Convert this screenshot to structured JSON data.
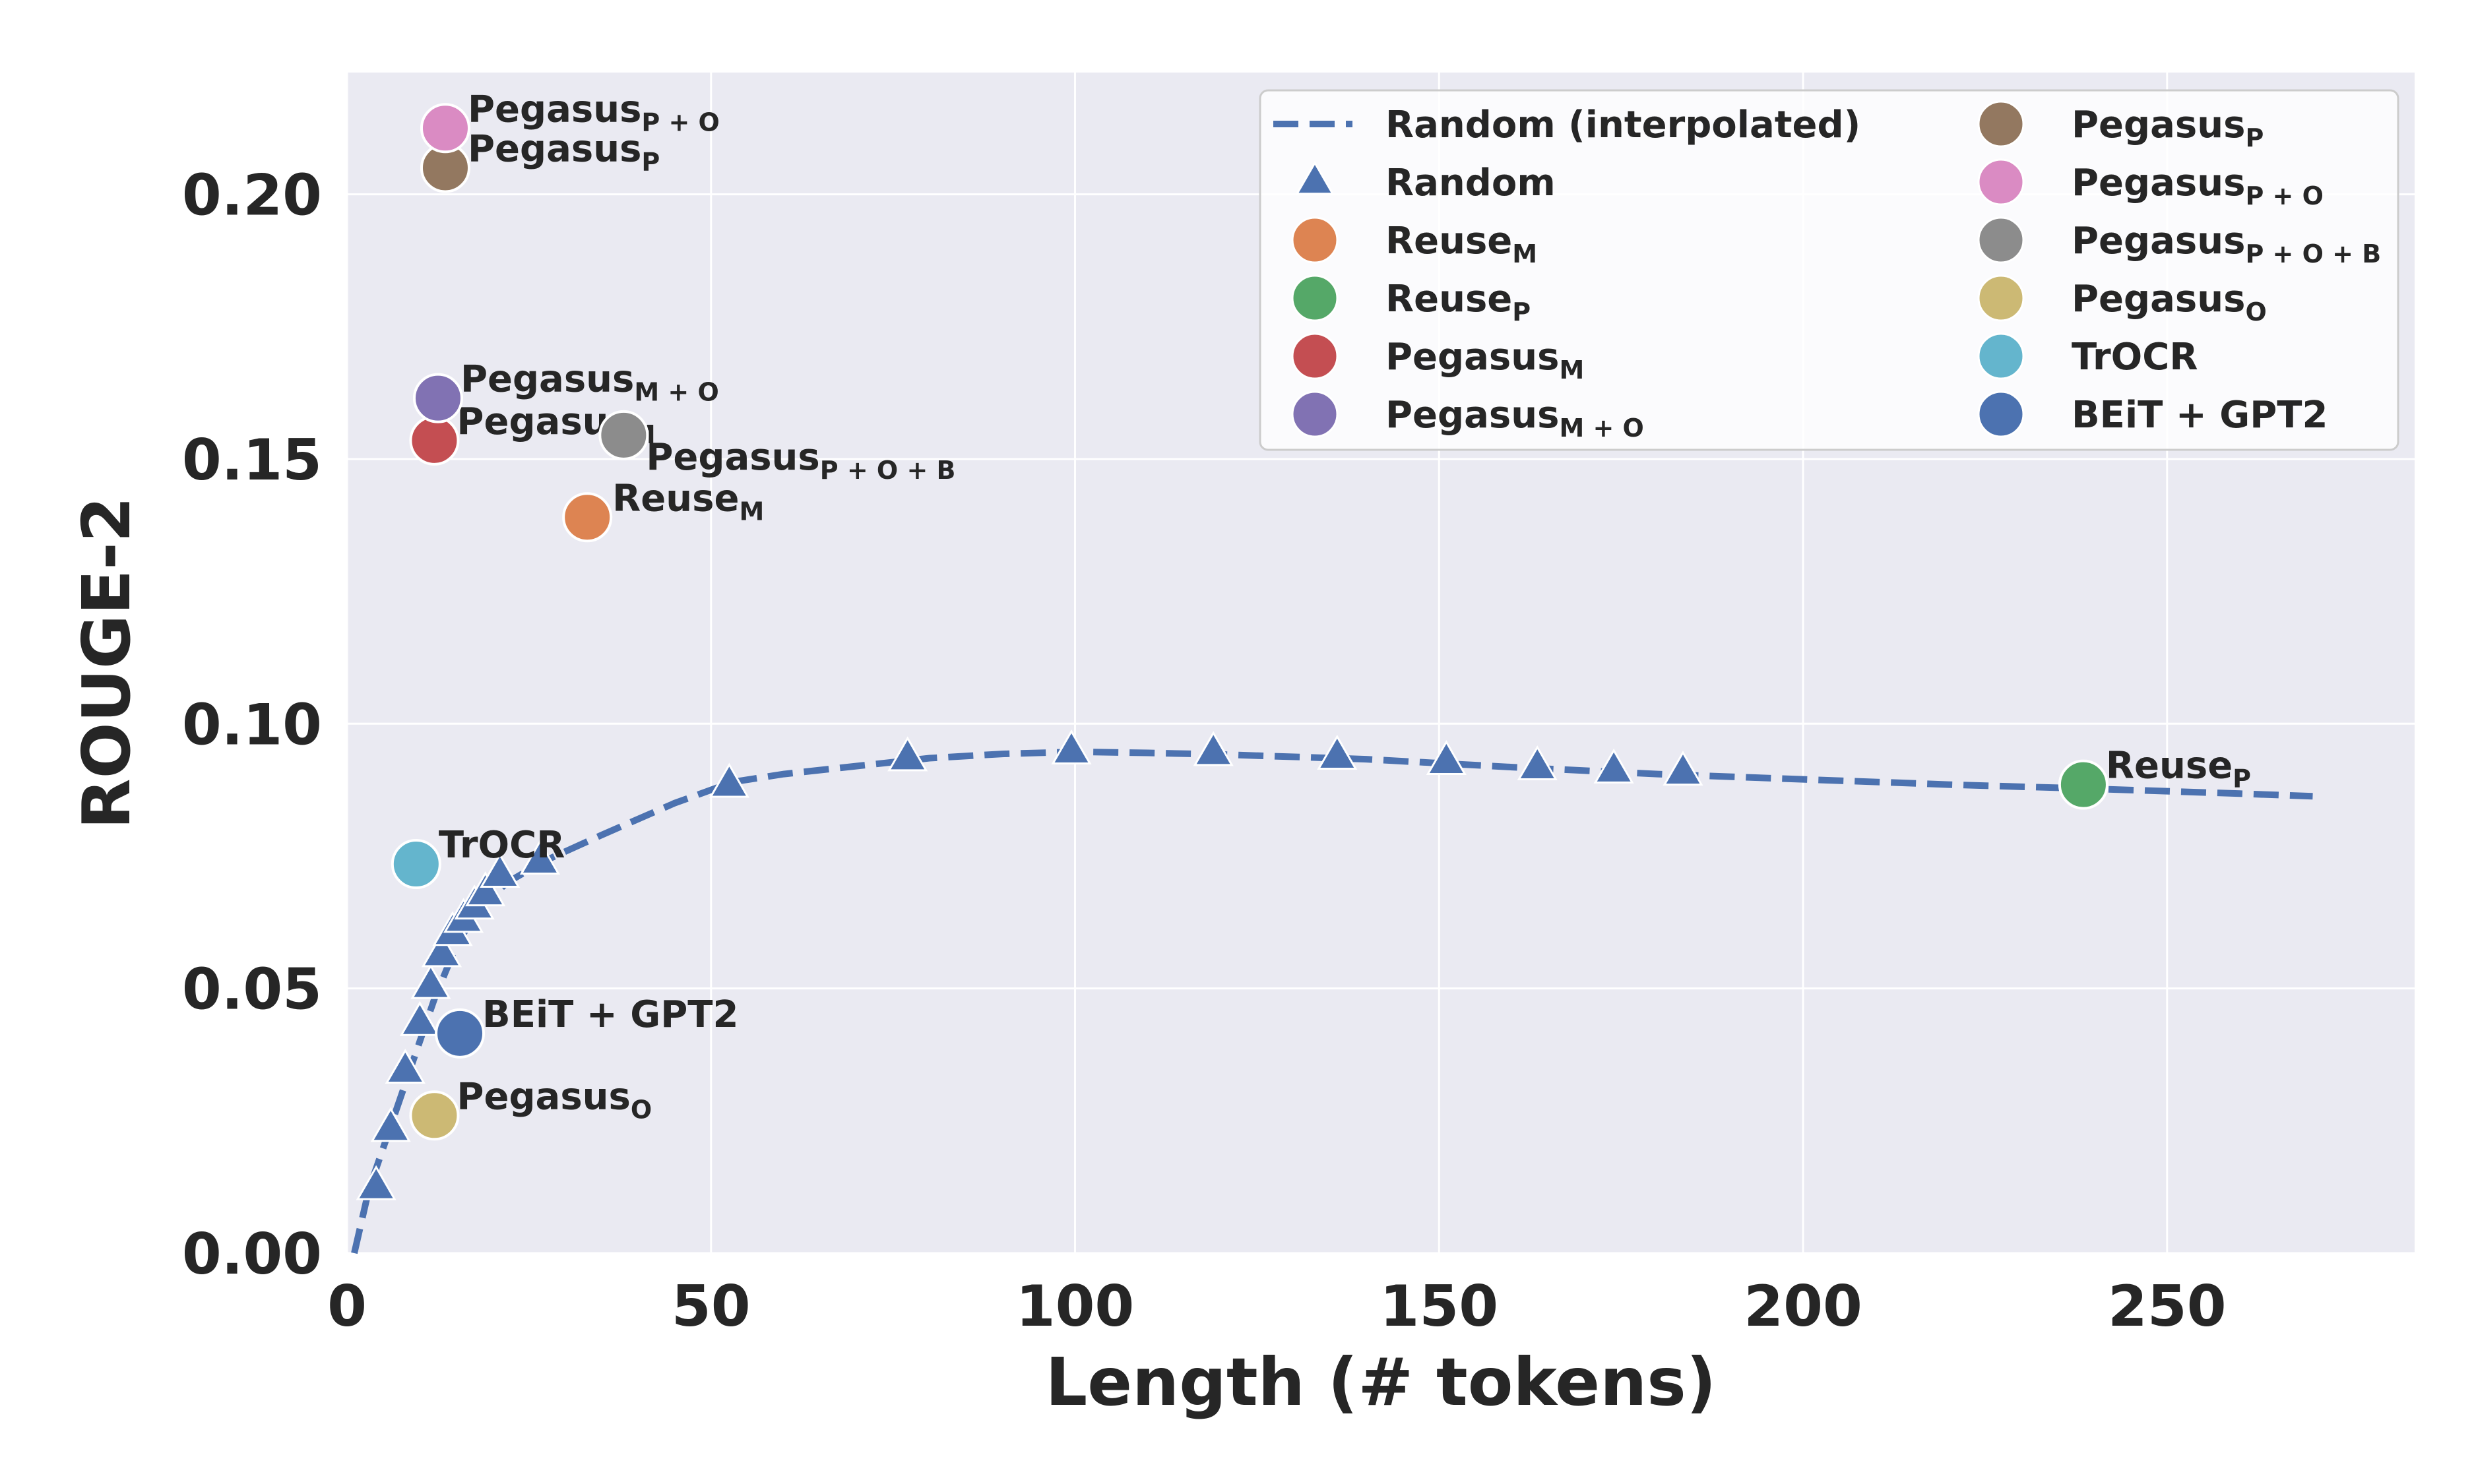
{
  "chart_data": {
    "type": "scatter",
    "title": "",
    "xlabel": "Length (# tokens)",
    "ylabel": "ROUGE-2",
    "xlim": [
      0,
      284
    ],
    "ylim": [
      0,
      0.223
    ],
    "xticks": [
      "0",
      "50",
      "100",
      "150",
      "200",
      "250"
    ],
    "yticks": [
      "0.00",
      "0.05",
      "0.10",
      "0.15",
      "0.20"
    ],
    "grid": true,
    "legend_position": "top-right",
    "interpolated": {
      "name": "Random (interpolated)",
      "color": "#4c72b0",
      "x": [
        1,
        3,
        6,
        9,
        12,
        15,
        18,
        22,
        27,
        35,
        45,
        53,
        60,
        70,
        80,
        90,
        100,
        110,
        120,
        140,
        160,
        180,
        200,
        220,
        240,
        260,
        270
      ],
      "y": [
        0.0,
        0.012,
        0.024,
        0.036,
        0.048,
        0.058,
        0.065,
        0.07,
        0.074,
        0.079,
        0.085,
        0.089,
        0.0905,
        0.092,
        0.0935,
        0.0943,
        0.0947,
        0.0945,
        0.0942,
        0.0933,
        0.0918,
        0.0905,
        0.0895,
        0.0885,
        0.0877,
        0.0868,
        0.0863
      ]
    },
    "random": {
      "name": "Random",
      "color": "#4c72b0",
      "x": [
        4,
        6,
        8,
        10,
        11.5,
        13,
        14.5,
        16,
        17.5,
        19,
        21,
        26.5,
        52.5,
        77,
        99.5,
        119,
        136,
        151,
        163.5,
        174,
        183.5
      ],
      "y": [
        0.0125,
        0.0235,
        0.0345,
        0.0435,
        0.0505,
        0.0565,
        0.0605,
        0.063,
        0.0655,
        0.068,
        0.0715,
        0.074,
        0.0885,
        0.0935,
        0.0948,
        0.0945,
        0.0938,
        0.0928,
        0.0918,
        0.0912,
        0.0908
      ]
    },
    "models": [
      {
        "name": "Reuse",
        "sub": "M",
        "color": "#dd8452",
        "x": 33,
        "y": 0.139
      },
      {
        "name": "Reuse",
        "sub": "P",
        "color": "#55a868",
        "x": 238.5,
        "y": 0.0885
      },
      {
        "name": "Pegasus",
        "sub": "M",
        "color": "#c44e52",
        "x": 12,
        "y": 0.1535
      },
      {
        "name": "Pegasus",
        "sub": "M + O",
        "color": "#8172b3",
        "x": 12.5,
        "y": 0.1615
      },
      {
        "name": "Pegasus",
        "sub": "P",
        "color": "#937860",
        "x": 13.5,
        "y": 0.205
      },
      {
        "name": "Pegasus",
        "sub": "P + O",
        "color": "#da8bc3",
        "x": 13.5,
        "y": 0.2125
      },
      {
        "name": "Pegasus",
        "sub": "P + O + B",
        "color": "#8c8c8c",
        "x": 38,
        "y": 0.1545
      },
      {
        "name": "Pegasus",
        "sub": "O",
        "color": "#ccb974",
        "x": 12,
        "y": 0.026
      },
      {
        "name": "TrOCR",
        "sub": "",
        "color": "#64b5cd",
        "x": 9.5,
        "y": 0.0735
      },
      {
        "name": "BEiT + GPT2",
        "sub": "",
        "color": "#4c72b0",
        "x": 15.5,
        "y": 0.0415
      }
    ]
  }
}
